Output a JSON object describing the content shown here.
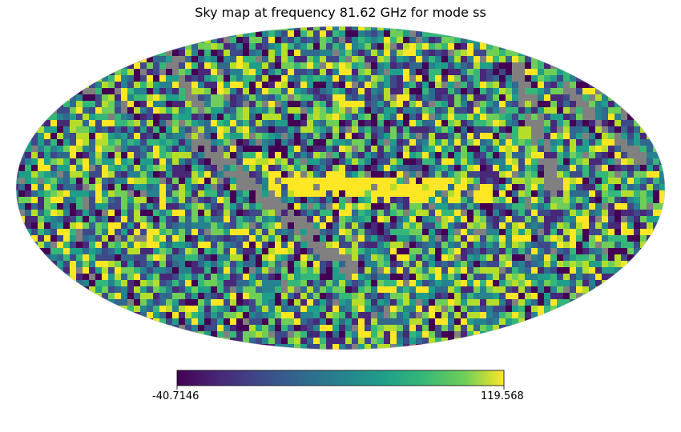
{
  "chart_data": {
    "type": "heatmap",
    "projection": "mollweide",
    "title": "Sky map at frequency 81.62 GHz for mode ss",
    "colormap": "viridis",
    "bad_value_color": "#808080",
    "colorbar": {
      "orientation": "horizontal",
      "min": -40.7146,
      "max": 119.568,
      "min_label": "-40.7146",
      "max_label": "119.568"
    },
    "features": [
      {
        "name": "galactic plane band",
        "value_level": "saturated high (yellow)"
      },
      {
        "name": "masked diagonal stripes",
        "value_level": "bad values (gray)"
      }
    ]
  }
}
